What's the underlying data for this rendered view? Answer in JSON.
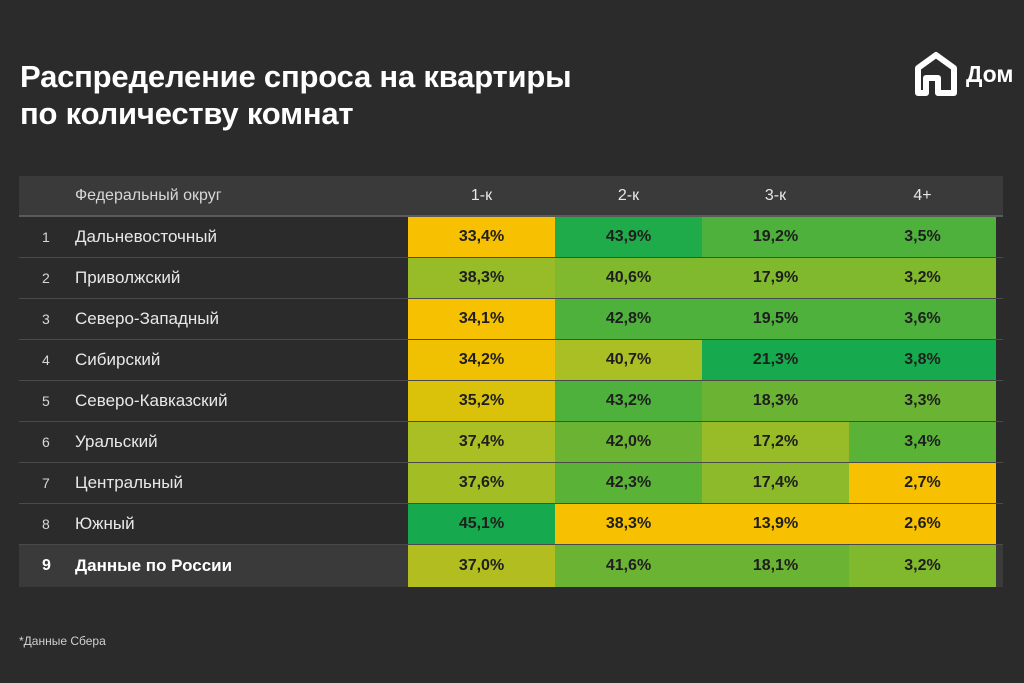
{
  "title": {
    "line1": "Распределение спроса на квартиры",
    "line2": "по количеству комнат"
  },
  "logo": {
    "icon": "dom-house-icon",
    "text": "Дом"
  },
  "colors": {
    "background": "#2b2b2b",
    "yellow": "#f7c000",
    "yellow_green": "#a9bf24",
    "light_green": "#80b92d",
    "green": "#4db13b",
    "dark_green": "#16a94d"
  },
  "chart_data": {
    "type": "table",
    "columns": [
      "",
      "Федеральный округ",
      "1-к",
      "2-к",
      "3-к",
      "4+"
    ],
    "rows": [
      {
        "num": "1",
        "name": "Дальневосточный",
        "values": [
          "33,4%",
          "43,9%",
          "19,2%",
          "3,5%"
        ],
        "colors": [
          "#f7c000",
          "#1fab4a",
          "#4db13b",
          "#4db13b"
        ]
      },
      {
        "num": "2",
        "name": "Приволжский",
        "values": [
          "38,3%",
          "40,6%",
          "17,9%",
          "3,2%"
        ],
        "colors": [
          "#98bb28",
          "#80b92d",
          "#80b92d",
          "#80b92d"
        ]
      },
      {
        "num": "3",
        "name": "Северо-Западный",
        "values": [
          "34,1%",
          "42,8%",
          "19,5%",
          "3,6%"
        ],
        "colors": [
          "#f5c100",
          "#4db13b",
          "#4db13b",
          "#4db13b"
        ]
      },
      {
        "num": "4",
        "name": "Сибирский",
        "values": [
          "34,2%",
          "40,7%",
          "21,3%",
          "3,8%"
        ],
        "colors": [
          "#f0c003",
          "#a9bf24",
          "#16a94d",
          "#16a94d"
        ]
      },
      {
        "num": "5",
        "name": "Северо-Кавказский",
        "values": [
          "35,2%",
          "43,2%",
          "18,3%",
          "3,3%"
        ],
        "colors": [
          "#dbc20a",
          "#4db13b",
          "#6bb433",
          "#6bb433"
        ]
      },
      {
        "num": "6",
        "name": "Уральский",
        "values": [
          "37,4%",
          "42,0%",
          "17,2%",
          "3,4%"
        ],
        "colors": [
          "#a9bf24",
          "#6bb433",
          "#98bb28",
          "#5ab337"
        ]
      },
      {
        "num": "7",
        "name": "Центральный",
        "values": [
          "37,6%",
          "42,3%",
          "17,4%",
          "2,7%"
        ],
        "colors": [
          "#a3bd25",
          "#5ab337",
          "#8cba2a",
          "#f7c000"
        ]
      },
      {
        "num": "8",
        "name": "Южный",
        "values": [
          "45,1%",
          "38,3%",
          "13,9%",
          "2,6%"
        ],
        "colors": [
          "#16a94d",
          "#f7c000",
          "#f7c000",
          "#f7c000"
        ]
      },
      {
        "num": "9",
        "name": "Данные по России",
        "values": [
          "37,0%",
          "41,6%",
          "18,1%",
          "3,2%"
        ],
        "colors": [
          "#b2be1f",
          "#6bb433",
          "#6bb433",
          "#80b92d"
        ],
        "total": true
      }
    ]
  },
  "footnote": "*Данные Сбера"
}
